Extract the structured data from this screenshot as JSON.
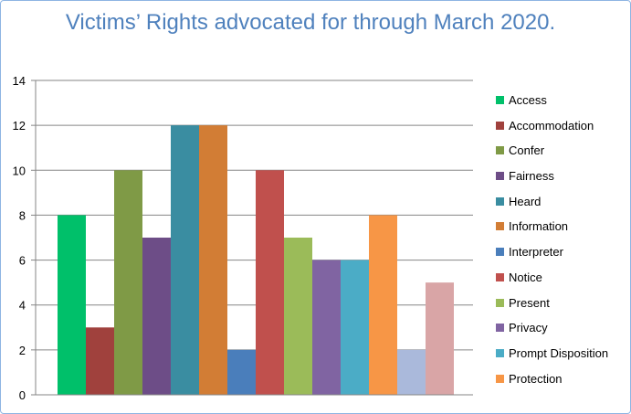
{
  "title": "Victims’ Rights advocated for through March 2020.",
  "chart_data": {
    "type": "bar",
    "title": "Victims’ Rights advocated for through March 2020.",
    "xlabel": "",
    "ylabel": "",
    "ylim": [
      0,
      14
    ],
    "yticks": [
      "0",
      "2",
      "4",
      "6",
      "8",
      "10",
      "12",
      "14"
    ],
    "grid": true,
    "legend_position": "right",
    "series": [
      {
        "name": "Access",
        "value": 8,
        "color": "#00c06a"
      },
      {
        "name": "Accommodation",
        "value": 3,
        "color": "#a0413d"
      },
      {
        "name": "Confer",
        "value": 10,
        "color": "#7f9a46"
      },
      {
        "name": "Fairness",
        "value": 7,
        "color": "#6d4d87"
      },
      {
        "name": "Heard",
        "value": 12,
        "color": "#3a8da1"
      },
      {
        "name": "Information",
        "value": 12,
        "color": "#d27d35"
      },
      {
        "name": "Interpreter",
        "value": 2,
        "color": "#4a7ebb"
      },
      {
        "name": "Notice",
        "value": 10,
        "color": "#c0504d"
      },
      {
        "name": "Present",
        "value": 7,
        "color": "#9bbb59"
      },
      {
        "name": "Privacy",
        "value": 6,
        "color": "#8064a2"
      },
      {
        "name": "Prompt Disposition",
        "value": 6,
        "color": "#4bacc6"
      },
      {
        "name": "Protection",
        "value": 8,
        "color": "#f79646"
      },
      {
        "name": "",
        "value": 2,
        "color": "#aab9db"
      },
      {
        "name": "",
        "value": 5,
        "color": "#d9a5a6"
      }
    ]
  }
}
